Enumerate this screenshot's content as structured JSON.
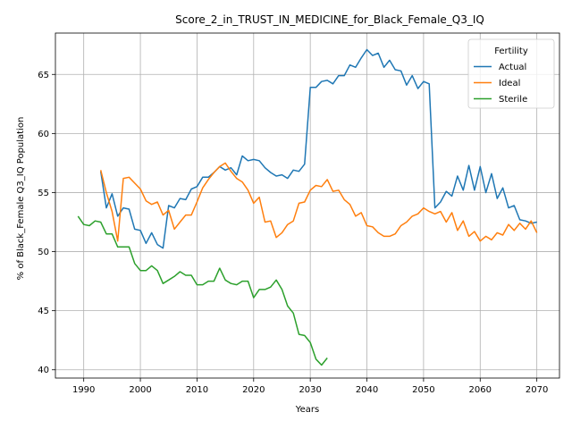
{
  "chart_data": {
    "type": "line",
    "title": "Score_2_in_TRUST_IN_MEDICINE_for_Black_Female_Q3_IQ",
    "xlabel": "Years",
    "ylabel": "% of Black_Female Q3_IQ Population",
    "xlim": [
      1985,
      2074
    ],
    "ylim": [
      39.3,
      68.5
    ],
    "xticks": [
      1990,
      2000,
      2010,
      2020,
      2030,
      2040,
      2050,
      2060,
      2070
    ],
    "yticks": [
      40,
      45,
      50,
      55,
      60,
      65
    ],
    "grid": true,
    "legend": {
      "title": "Fertility",
      "position": "top-right"
    },
    "series": [
      {
        "name": "Actual",
        "color": "#1f77b4",
        "x": [
          1993,
          1994,
          1995,
          1996,
          1997,
          1998,
          1999,
          2000,
          2001,
          2002,
          2003,
          2004,
          2005,
          2006,
          2007,
          2008,
          2009,
          2010,
          2011,
          2012,
          2013,
          2014,
          2015,
          2016,
          2017,
          2018,
          2019,
          2020,
          2021,
          2022,
          2023,
          2024,
          2025,
          2026,
          2027,
          2028,
          2029,
          2030,
          2031,
          2032,
          2033,
          2034,
          2035,
          2036,
          2037,
          2038,
          2039,
          2040,
          2041,
          2042,
          2043,
          2044,
          2045,
          2046,
          2047,
          2048,
          2049,
          2050,
          2051,
          2052,
          2053,
          2054,
          2055,
          2056,
          2057,
          2058,
          2059,
          2060,
          2061,
          2062,
          2063,
          2064,
          2065,
          2066,
          2067,
          2068,
          2069,
          2070
        ],
        "values": [
          56.8,
          53.7,
          54.9,
          53.0,
          53.7,
          53.6,
          51.9,
          51.8,
          50.7,
          51.6,
          50.6,
          50.3,
          53.9,
          53.7,
          54.5,
          54.4,
          55.3,
          55.5,
          56.3,
          56.3,
          56.7,
          57.2,
          56.9,
          57.1,
          56.5,
          58.1,
          57.7,
          57.8,
          57.7,
          57.1,
          56.7,
          56.4,
          56.5,
          56.2,
          56.9,
          56.8,
          57.4,
          63.9,
          63.9,
          64.4,
          64.5,
          64.2,
          64.9,
          64.9,
          65.8,
          65.6,
          66.4,
          67.1,
          66.6,
          66.8,
          65.6,
          66.2,
          65.4,
          65.3,
          64.1,
          64.9,
          63.8,
          64.4,
          64.2,
          53.7,
          54.2,
          55.1,
          54.7,
          56.4,
          55.2,
          57.3,
          55.2,
          57.2,
          55.0,
          56.6,
          54.5,
          55.4,
          53.7,
          53.9,
          52.7,
          52.6,
          52.4,
          52.5
        ]
      },
      {
        "name": "Ideal",
        "color": "#ff7f0e",
        "x": [
          1993,
          1994,
          1995,
          1996,
          1997,
          1998,
          1999,
          2000,
          2001,
          2002,
          2003,
          2004,
          2005,
          2006,
          2007,
          2008,
          2009,
          2010,
          2011,
          2012,
          2013,
          2014,
          2015,
          2016,
          2017,
          2018,
          2019,
          2020,
          2021,
          2022,
          2023,
          2024,
          2025,
          2026,
          2027,
          2028,
          2029,
          2030,
          2031,
          2032,
          2033,
          2034,
          2035,
          2036,
          2037,
          2038,
          2039,
          2040,
          2041,
          2042,
          2043,
          2044,
          2045,
          2046,
          2047,
          2048,
          2049,
          2050,
          2051,
          2052,
          2053,
          2054,
          2055,
          2056,
          2057,
          2058,
          2059,
          2060,
          2061,
          2062,
          2063,
          2064,
          2065,
          2066,
          2067,
          2068,
          2069,
          2070
        ],
        "values": [
          56.9,
          55.0,
          53.4,
          50.9,
          56.2,
          56.3,
          55.8,
          55.3,
          54.3,
          54.0,
          54.2,
          53.1,
          53.5,
          51.9,
          52.5,
          53.1,
          53.1,
          54.2,
          55.4,
          56.1,
          56.7,
          57.2,
          57.5,
          56.8,
          56.2,
          55.9,
          55.2,
          54.1,
          54.6,
          52.5,
          52.6,
          51.2,
          51.6,
          52.3,
          52.6,
          54.1,
          54.2,
          55.2,
          55.6,
          55.5,
          56.1,
          55.1,
          55.2,
          54.4,
          54.0,
          53.0,
          53.3,
          52.2,
          52.1,
          51.6,
          51.3,
          51.3,
          51.5,
          52.2,
          52.5,
          53.0,
          53.2,
          53.7,
          53.4,
          53.2,
          53.4,
          52.5,
          53.3,
          51.8,
          52.6,
          51.3,
          51.7,
          50.9,
          51.3,
          51.0,
          51.6,
          51.4,
          52.3,
          51.8,
          52.4,
          51.9,
          52.6,
          51.6
        ]
      },
      {
        "name": "Sterile",
        "color": "#2ca02c",
        "x": [
          1989,
          1990,
          1991,
          1992,
          1993,
          1994,
          1995,
          1996,
          1997,
          1998,
          1999,
          2000,
          2001,
          2002,
          2003,
          2004,
          2005,
          2006,
          2007,
          2008,
          2009,
          2010,
          2011,
          2012,
          2013,
          2014,
          2015,
          2016,
          2017,
          2018,
          2019,
          2020,
          2021,
          2022,
          2023,
          2024,
          2025,
          2026,
          2027,
          2028,
          2029,
          2030,
          2031,
          2032,
          2033
        ],
        "values": [
          53.0,
          52.3,
          52.2,
          52.6,
          52.5,
          51.5,
          51.5,
          50.4,
          50.4,
          50.4,
          49.0,
          48.4,
          48.4,
          48.8,
          48.4,
          47.3,
          47.6,
          47.9,
          48.3,
          48.0,
          48.0,
          47.2,
          47.2,
          47.5,
          47.5,
          48.6,
          47.6,
          47.3,
          47.2,
          47.5,
          47.5,
          46.1,
          46.8,
          46.8,
          47.0,
          47.6,
          46.8,
          45.4,
          44.8,
          43.0,
          42.9,
          42.3,
          40.9,
          40.4,
          41.0
        ]
      }
    ]
  }
}
